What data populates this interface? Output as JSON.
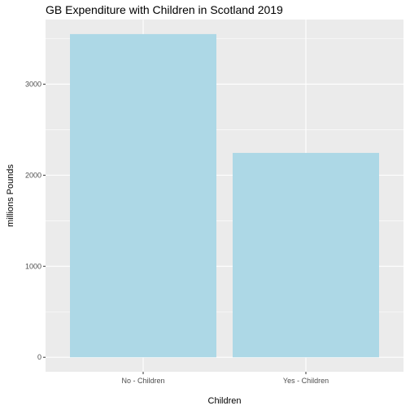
{
  "chart_data": {
    "type": "bar",
    "title": "GB Expenditure with Children in Scotland 2019",
    "xlabel": "Children",
    "ylabel": "millions Pounds",
    "categories": [
      "No - Children",
      "Yes - Children"
    ],
    "values": [
      3550,
      2245
    ],
    "ylim": [
      -159,
      3710
    ],
    "yticks": [
      0,
      1000,
      2000,
      3000
    ],
    "grid": true,
    "colors": {
      "bar": "#add8e6",
      "panel": "#ebebeb",
      "grid": "#ffffff",
      "tick_text": "#4d4d4d"
    }
  }
}
